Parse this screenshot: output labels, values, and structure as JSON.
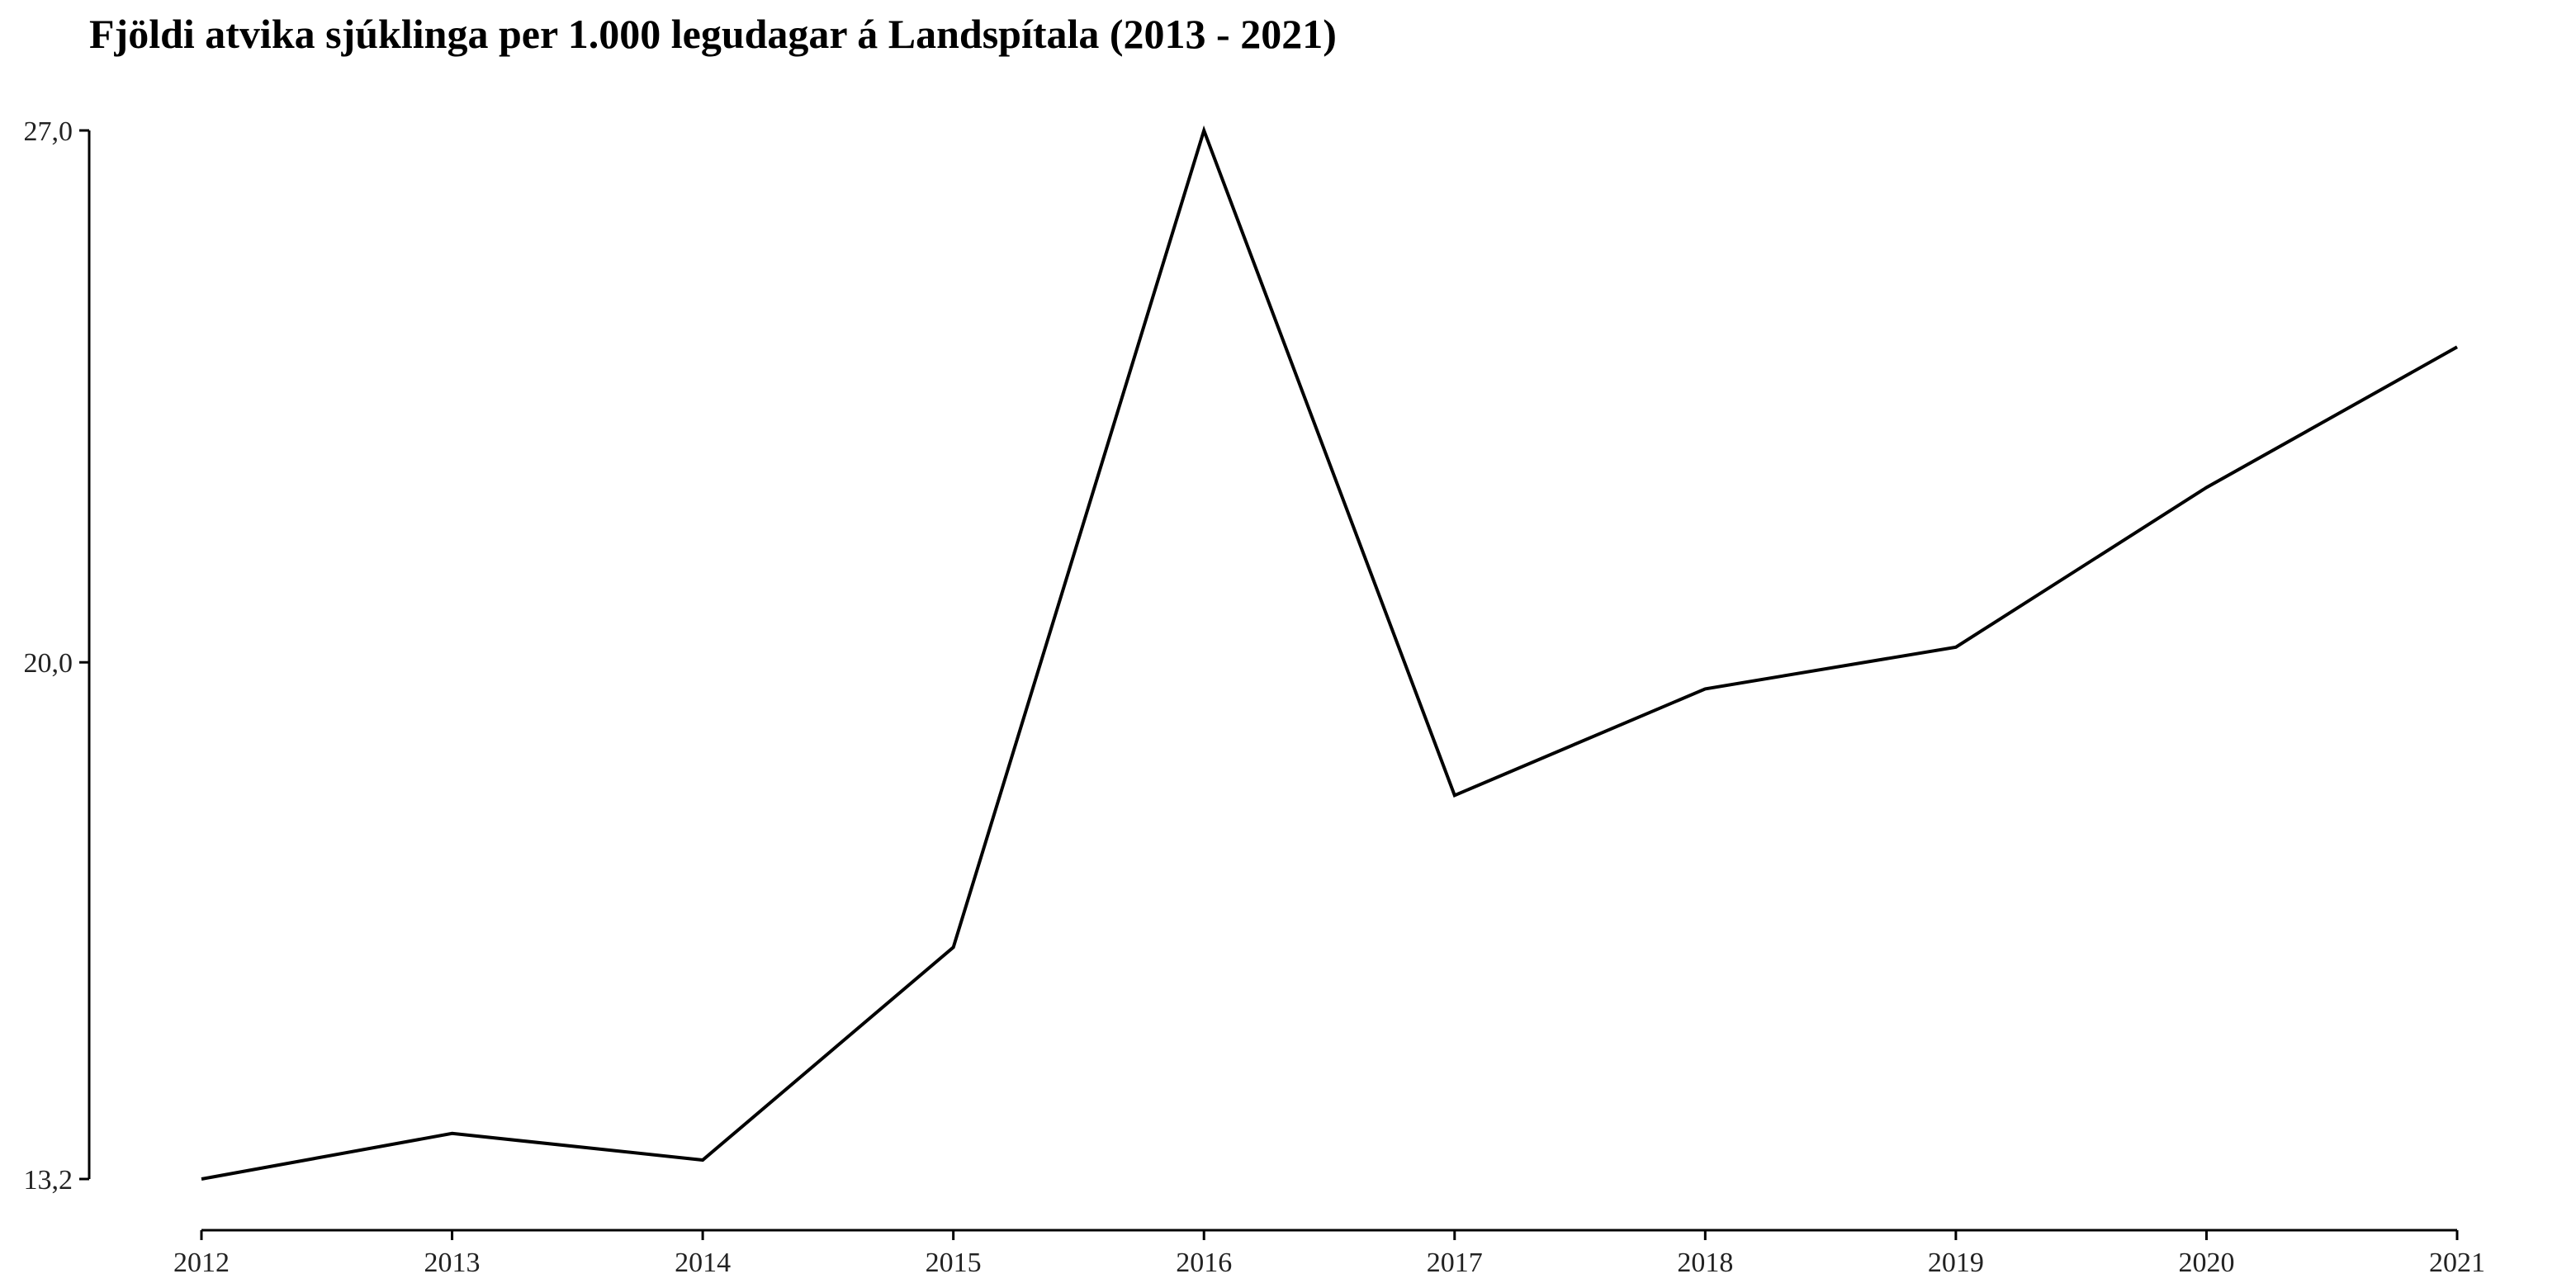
{
  "chart_data": {
    "type": "line",
    "title": "Fjöldi atvika sjúklinga per 1.000 legudagar á Landspítala (2013 - 2021)",
    "xlabel": "",
    "ylabel": "",
    "x": [
      2012,
      2013,
      2014,
      2015,
      2016,
      2017,
      2018,
      2019,
      2020,
      2021
    ],
    "x_tick_labels": [
      "2012",
      "2013",
      "2014",
      "2015",
      "2016",
      "2017",
      "2018",
      "2019",
      "2020",
      "2021"
    ],
    "y_ticks": [
      13.2,
      20.0,
      27.0
    ],
    "y_tick_labels": [
      "13,2",
      "20,0",
      "27,0"
    ],
    "ylim": [
      13.2,
      27.0
    ],
    "xlim": [
      2012,
      2021
    ],
    "series": [
      {
        "values": [
          13.2,
          13.8,
          13.45,
          16.25,
          27.0,
          18.25,
          19.65,
          20.2,
          22.3,
          24.15
        ],
        "color": "#000000"
      }
    ],
    "grid": false,
    "legend": "none"
  }
}
